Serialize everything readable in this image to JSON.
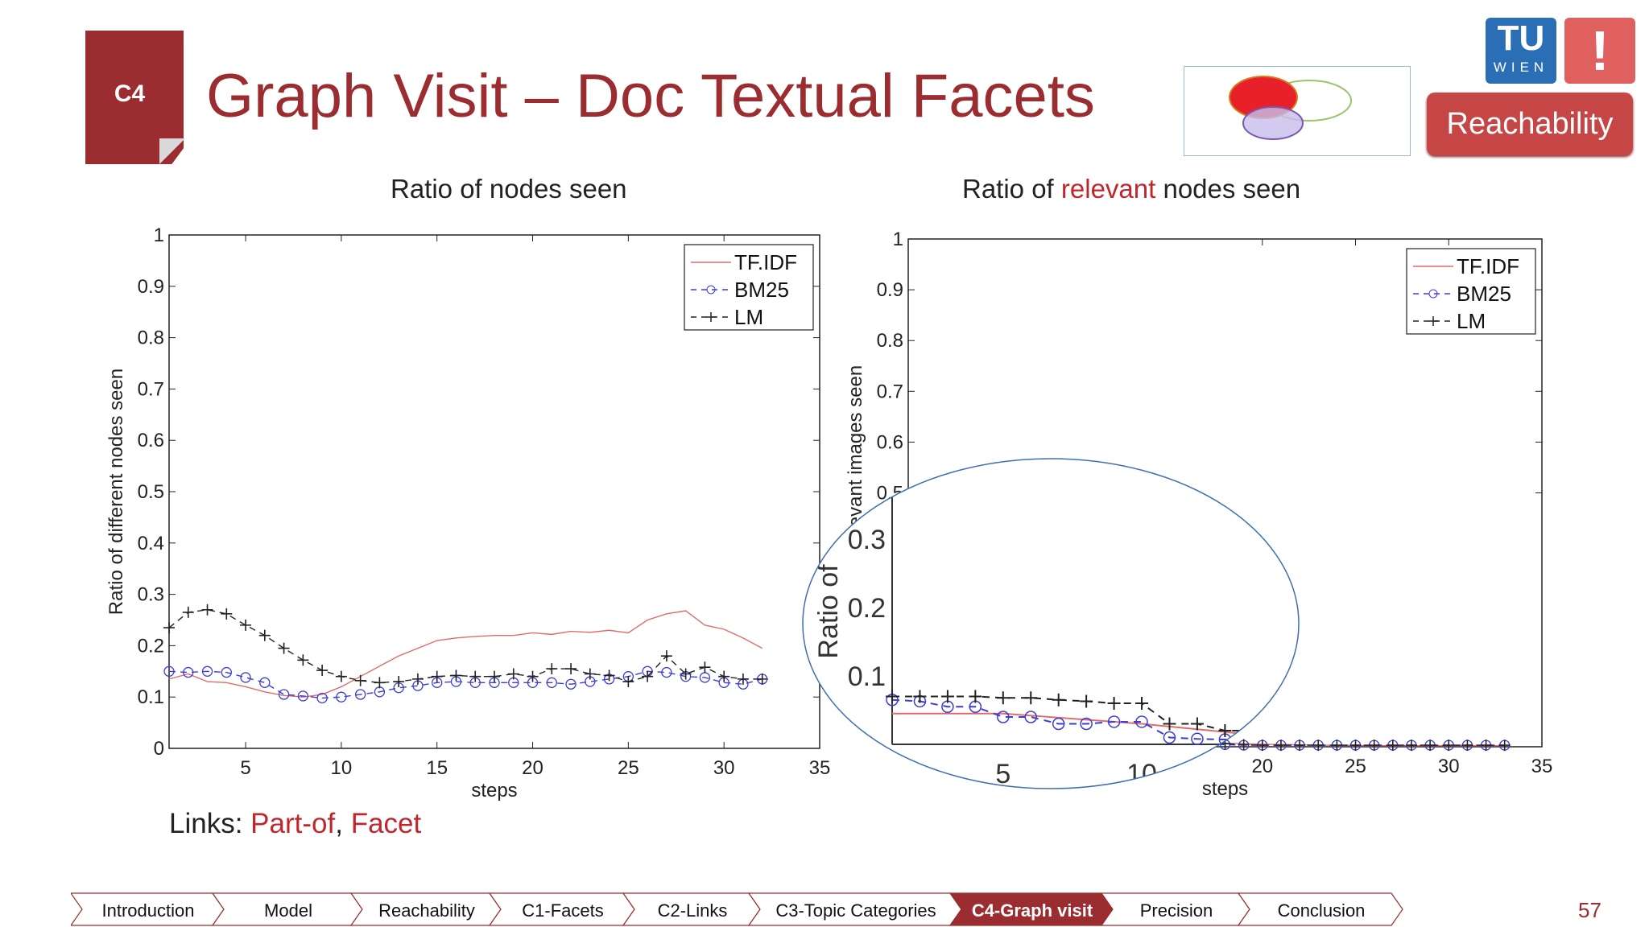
{
  "slide": {
    "section_badge": "C4",
    "title": "Graph Visit – Doc Textual Facets",
    "logo_text": "WIEN",
    "logo_letters": "TU",
    "excl": "!",
    "reach_button": "Reachability",
    "page_number": "57",
    "links_label": "Links:",
    "links_part_of": "Part-of",
    "links_sep": ",",
    "links_facet": "Facet",
    "colors": {
      "accent": "#9b2c2f",
      "link_red": "#c0272d",
      "tu_blue": "#2a6eb5",
      "nav_active": "#9b2c2f"
    }
  },
  "left_subtitle": "Ratio of nodes seen",
  "right_subtitle_pre": "Ratio of ",
  "right_subtitle_red": "relevant",
  "right_subtitle_post": " nodes seen",
  "nav": {
    "items": [
      {
        "label": "Introduction",
        "active": false
      },
      {
        "label": "Model",
        "active": false
      },
      {
        "label": "Reachability",
        "active": false
      },
      {
        "label": "C1-Facets",
        "active": false
      },
      {
        "label": "C2-Links",
        "active": false
      },
      {
        "label": "C3-Topic Categories",
        "active": false
      },
      {
        "label": "C4-Graph visit",
        "active": true
      },
      {
        "label": "Precision",
        "active": false
      },
      {
        "label": "Conclusion",
        "active": false
      }
    ]
  },
  "chart_data": [
    {
      "type": "line",
      "xlabel": "steps",
      "ylabel": "Ratio of different nodes seen",
      "xlim": [
        1,
        35
      ],
      "ylim": [
        0,
        1
      ],
      "xticks": [
        5,
        10,
        15,
        20,
        25,
        30,
        35
      ],
      "yticks": [
        0,
        0.1,
        0.2,
        0.3,
        0.4,
        0.5,
        0.6,
        0.7,
        0.8,
        0.9,
        1
      ],
      "ytick_labels": [
        "0",
        "0.1",
        "0.2",
        "0.3",
        "0.4",
        "0.5",
        "0.6",
        "0.7",
        "0.8",
        "0.9",
        "1"
      ],
      "legend": "top-right",
      "series": [
        {
          "name": "TF.IDF",
          "style": "solid",
          "color": "#e06b6b",
          "x": [
            1,
            2,
            3,
            4,
            5,
            6,
            7,
            8,
            9,
            10,
            11,
            12,
            13,
            14,
            15,
            16,
            17,
            18,
            19,
            20,
            21,
            22,
            23,
            24,
            25,
            26,
            27,
            28,
            29,
            30,
            31,
            32
          ],
          "values": [
            0.135,
            0.145,
            0.13,
            0.128,
            0.12,
            0.11,
            0.103,
            0.1,
            0.105,
            0.12,
            0.14,
            0.16,
            0.18,
            0.195,
            0.21,
            0.215,
            0.218,
            0.22,
            0.22,
            0.225,
            0.222,
            0.228,
            0.226,
            0.23,
            0.225,
            0.25,
            0.262,
            0.268,
            0.24,
            0.232,
            0.215,
            0.195
          ]
        },
        {
          "name": "BM25",
          "style": "dashed-circle",
          "color": "#3c3cd6",
          "x": [
            1,
            2,
            3,
            4,
            5,
            6,
            7,
            8,
            9,
            10,
            11,
            12,
            13,
            14,
            15,
            16,
            17,
            18,
            19,
            20,
            21,
            22,
            23,
            24,
            25,
            26,
            27,
            28,
            29,
            30,
            31,
            32
          ],
          "values": [
            0.15,
            0.148,
            0.15,
            0.148,
            0.138,
            0.128,
            0.105,
            0.102,
            0.098,
            0.1,
            0.105,
            0.11,
            0.118,
            0.122,
            0.128,
            0.13,
            0.128,
            0.128,
            0.128,
            0.128,
            0.128,
            0.125,
            0.13,
            0.135,
            0.14,
            0.15,
            0.148,
            0.14,
            0.138,
            0.128,
            0.125,
            0.135
          ]
        },
        {
          "name": "LM",
          "style": "dashed-plus",
          "color": "#222222",
          "x": [
            1,
            2,
            3,
            4,
            5,
            6,
            7,
            8,
            9,
            10,
            11,
            12,
            13,
            14,
            15,
            16,
            17,
            18,
            19,
            20,
            21,
            22,
            23,
            24,
            25,
            26,
            27,
            28,
            29,
            30,
            31,
            32
          ],
          "values": [
            0.235,
            0.265,
            0.27,
            0.262,
            0.24,
            0.22,
            0.195,
            0.172,
            0.152,
            0.14,
            0.132,
            0.128,
            0.13,
            0.135,
            0.14,
            0.142,
            0.14,
            0.14,
            0.145,
            0.14,
            0.155,
            0.155,
            0.145,
            0.142,
            0.13,
            0.14,
            0.18,
            0.145,
            0.158,
            0.14,
            0.135,
            0.135
          ]
        }
      ]
    },
    {
      "type": "line",
      "xlabel": "steps",
      "ylabel": "Ratio of relevant images seen",
      "xlim": [
        1,
        35
      ],
      "ylim": [
        0,
        1
      ],
      "xticks": [
        20,
        25,
        30,
        35
      ],
      "yticks": [
        0.5,
        0.6,
        0.7,
        0.8,
        0.9,
        1
      ],
      "ytick_labels": [
        "0.5",
        "0.6",
        "0.7",
        "0.8",
        "0.9",
        "1"
      ],
      "legend": "top-right",
      "series": [
        {
          "name": "TF.IDF",
          "style": "solid",
          "color": "#e06b6b",
          "x": [
            1,
            5,
            10,
            15,
            20,
            25,
            30,
            33
          ],
          "values": [
            0.045,
            0.045,
            0.03,
            0.01,
            0.005,
            0.002,
            0.002,
            0.002
          ]
        },
        {
          "name": "BM25",
          "style": "dashed-circle",
          "color": "#3c3cd6",
          "x": [
            1,
            2,
            3,
            4,
            5,
            6,
            7,
            8,
            9,
            10,
            11,
            12,
            13,
            14,
            15,
            16,
            17,
            18,
            19,
            20,
            21,
            22,
            23,
            24,
            25,
            26,
            27,
            28,
            29,
            30,
            31,
            32,
            33
          ],
          "values": [
            0.065,
            0.063,
            0.055,
            0.055,
            0.04,
            0.04,
            0.03,
            0.03,
            0.033,
            0.033,
            0.01,
            0.008,
            0.007,
            0.007,
            0.006,
            0.005,
            0.004,
            0.004,
            0.003,
            0.003,
            0.003,
            0.003,
            0.003,
            0.003,
            0.003,
            0.003,
            0.003,
            0.003,
            0.003,
            0.003,
            0.003,
            0.003,
            0.003
          ]
        },
        {
          "name": "LM",
          "style": "dashed-plus",
          "color": "#222222",
          "x": [
            1,
            2,
            3,
            4,
            5,
            6,
            7,
            8,
            9,
            10,
            11,
            12,
            13,
            14,
            15,
            16,
            17,
            18,
            19,
            20,
            21,
            22,
            23,
            24,
            25,
            26,
            27,
            28,
            29,
            30,
            31,
            32,
            33
          ],
          "values": [
            0.07,
            0.07,
            0.07,
            0.07,
            0.068,
            0.068,
            0.065,
            0.063,
            0.06,
            0.06,
            0.03,
            0.03,
            0.02,
            0.02,
            0.018,
            0.018,
            0.01,
            0.006,
            0.004,
            0.003,
            0.003,
            0.003,
            0.003,
            0.003,
            0.003,
            0.003,
            0.003,
            0.003,
            0.003,
            0.003,
            0.003,
            0.003,
            0.003
          ]
        }
      ],
      "zoom_inset": {
        "ytick_labels": [
          "0.1",
          "0.2",
          "0.3"
        ],
        "xtick_labels": [
          "5",
          "10"
        ],
        "ylabel": "Ratio of"
      }
    }
  ]
}
